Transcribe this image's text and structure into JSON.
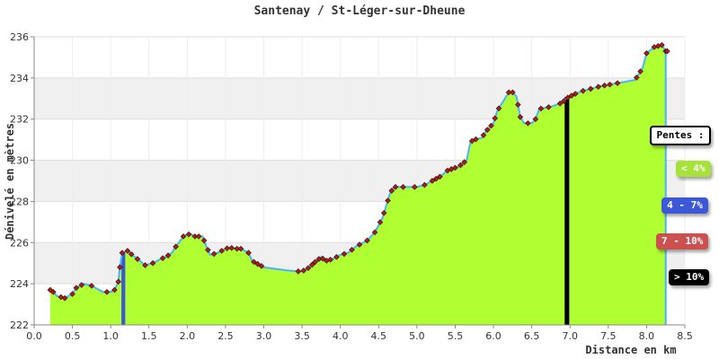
{
  "chart_data": {
    "type": "area",
    "title": "Santenay / St-Léger-sur-Dheune",
    "xlabel": "Distance en km",
    "ylabel": "Dénivelé en mètres",
    "xlim": [
      0,
      8.5
    ],
    "ylim": [
      222,
      236
    ],
    "xticks": [
      "0.0",
      "0.5",
      "1.0",
      "1.5",
      "2.0",
      "2.5",
      "3.0",
      "3.5",
      "4.0",
      "4.5",
      "5.0",
      "5.5",
      "6.0",
      "6.5",
      "7.0",
      "7.5",
      "8.0",
      "8.5"
    ],
    "yticks": [
      "222",
      "224",
      "226",
      "228",
      "230",
      "232",
      "234",
      "236"
    ],
    "grid": true,
    "legend_placement": "right",
    "series": [
      {
        "x": [
          0.21,
          0.25,
          0.3,
          0.4,
          0.5,
          0.55,
          0.6,
          0.65,
          0.75,
          0.8,
          0.9,
          1.0,
          1.05,
          1.1,
          1.12,
          1.15,
          1.22,
          1.28,
          1.35,
          1.45,
          1.55,
          1.65,
          1.72,
          1.8,
          1.85,
          1.95,
          2.0,
          2.05,
          2.1,
          2.2,
          2.25,
          2.3,
          2.4,
          2.5,
          2.55,
          2.65,
          2.7,
          2.8,
          2.85,
          2.9,
          2.95,
          3.0,
          3.1,
          3.3,
          3.45,
          3.5,
          3.6,
          3.65,
          3.72,
          3.75,
          3.8,
          3.9,
          4.0,
          4.1,
          4.2,
          4.35,
          4.45,
          4.55,
          4.6,
          4.65,
          4.7,
          4.75,
          4.85,
          5.0,
          5.1,
          5.2,
          5.3,
          5.4,
          5.55,
          5.65,
          5.7,
          5.75,
          5.85,
          5.9,
          6.0,
          6.05,
          6.1,
          6.2,
          6.25,
          6.3,
          6.35,
          6.4,
          6.5,
          6.55,
          6.6,
          6.75,
          6.9,
          6.95,
          7.05,
          7.15,
          7.3,
          7.4,
          7.55,
          7.7,
          7.85,
          7.95,
          8.0,
          8.1,
          8.2,
          8.25
        ],
        "y": [
          223.7,
          223.6,
          223.4,
          223.3,
          223.5,
          223.8,
          223.9,
          224.0,
          223.9,
          223.8,
          223.6,
          223.6,
          223.7,
          224.1,
          224.8,
          225.5,
          225.6,
          225.4,
          225.2,
          224.9,
          225.0,
          225.2,
          225.3,
          225.5,
          225.8,
          226.3,
          226.4,
          226.4,
          226.3,
          226.3,
          225.8,
          225.4,
          225.5,
          225.7,
          225.75,
          225.7,
          225.7,
          225.5,
          225.1,
          225.0,
          224.9,
          224.8,
          224.75,
          224.65,
          224.6,
          224.6,
          224.8,
          225.0,
          225.2,
          225.3,
          225.1,
          225.2,
          225.4,
          225.5,
          225.8,
          226.1,
          226.5,
          227.2,
          227.8,
          228.4,
          228.7,
          228.7,
          228.7,
          228.7,
          228.8,
          229.0,
          229.2,
          229.5,
          229.7,
          230.0,
          230.9,
          231.0,
          231.1,
          231.4,
          231.8,
          232.4,
          232.7,
          233.3,
          233.3,
          233.1,
          232.1,
          231.8,
          231.8,
          232.0,
          232.5,
          232.6,
          232.8,
          233.0,
          233.2,
          233.35,
          233.5,
          233.6,
          233.7,
          233.8,
          233.9,
          234.5,
          235.2,
          235.5,
          235.6,
          235.3
        ],
        "markers": [
          0.21,
          0.25,
          0.35,
          0.4,
          0.5,
          0.55,
          0.62,
          0.75,
          0.95,
          1.05,
          1.1,
          1.12,
          1.15,
          1.22,
          1.27,
          1.35,
          1.45,
          1.55,
          1.68,
          1.75,
          1.85,
          1.95,
          2.02,
          2.1,
          2.15,
          2.22,
          2.27,
          2.35,
          2.45,
          2.52,
          2.58,
          2.65,
          2.7,
          2.8,
          2.87,
          2.92,
          2.97,
          3.45,
          3.52,
          3.58,
          3.63,
          3.67,
          3.72,
          3.77,
          3.82,
          3.87,
          3.95,
          4.05,
          4.15,
          4.25,
          4.35,
          4.45,
          4.52,
          4.57,
          4.62,
          4.67,
          4.72,
          4.82,
          4.97,
          5.1,
          5.2,
          5.25,
          5.3,
          5.4,
          5.45,
          5.5,
          5.57,
          5.62,
          5.72,
          5.77,
          5.87,
          5.92,
          5.97,
          6.02,
          6.07,
          6.2,
          6.25,
          6.32,
          6.35,
          6.45,
          6.55,
          6.62,
          6.72,
          6.87,
          6.92,
          6.97,
          7.02,
          7.07,
          7.17,
          7.27,
          7.37,
          7.45,
          7.52,
          7.62,
          7.87,
          7.92,
          8.0,
          8.1,
          8.15,
          8.2,
          8.25,
          8.27
        ]
      }
    ],
    "slope_segments": [
      {
        "category": "4 - 7%",
        "x_start": 1.14,
        "x_end": 1.19
      },
      {
        "category": "> 10%",
        "x_start": 6.93,
        "x_end": 6.99
      }
    ],
    "colors": {
      "fill": "#b0ff33",
      "line": "#47b2ff",
      "marker": "#cc1010",
      "grid_band": "#f0f0f0",
      "grid_line": "#dddddd"
    },
    "legend": {
      "title": "Pentes :",
      "items": [
        {
          "label": "< 4%",
          "color": "#a6e33a"
        },
        {
          "label": "4 - 7%",
          "color": "#3c58d6"
        },
        {
          "label": "7 - 10%",
          "color": "#cc5050"
        },
        {
          "label": "> 10%",
          "color": "#000000"
        }
      ]
    }
  }
}
